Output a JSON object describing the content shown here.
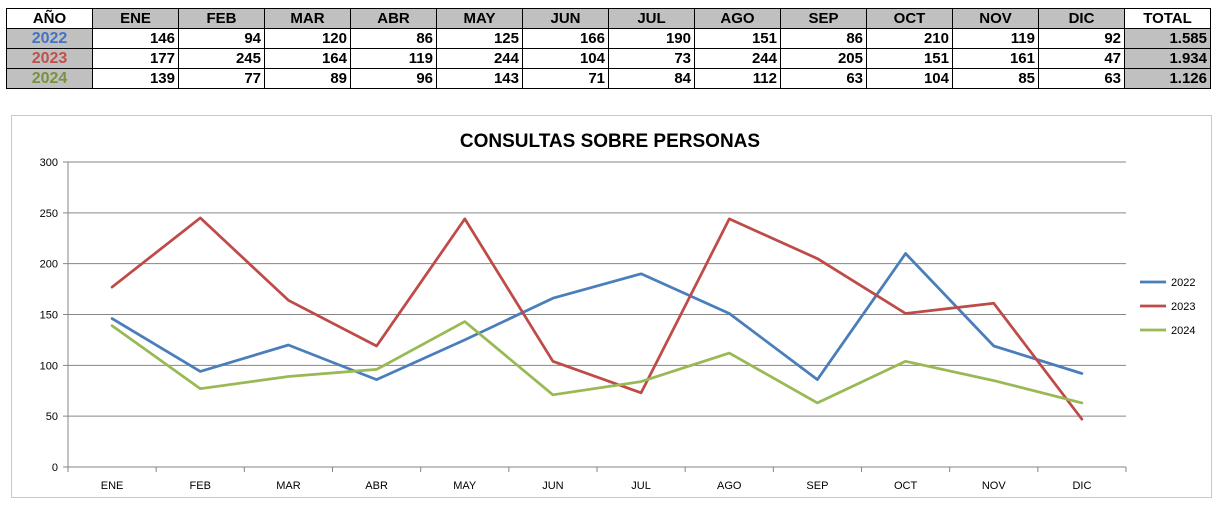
{
  "table": {
    "header_year": "AÑO",
    "header_total": "TOTAL",
    "months": [
      "ENE",
      "FEB",
      "MAR",
      "ABR",
      "MAY",
      "JUN",
      "JUL",
      "AGO",
      "SEP",
      "OCT",
      "NOV",
      "DIC"
    ],
    "rows": [
      {
        "year": "2022",
        "color": "#4472C4",
        "values": [
          "146",
          "94",
          "120",
          "86",
          "125",
          "166",
          "190",
          "151",
          "86",
          "210",
          "119",
          "92"
        ],
        "total": "1.585"
      },
      {
        "year": "2023",
        "color": "#C0504D",
        "values": [
          "177",
          "245",
          "164",
          "119",
          "244",
          "104",
          "73",
          "244",
          "205",
          "151",
          "161",
          "47"
        ],
        "total": "1.934"
      },
      {
        "year": "2024",
        "color": "#9BBB59",
        "values": [
          "139",
          "77",
          "89",
          "96",
          "143",
          "71",
          "84",
          "112",
          "63",
          "104",
          "85",
          "63"
        ],
        "total": "1.126"
      }
    ]
  },
  "chart_data": {
    "type": "line",
    "title": "CONSULTAS SOBRE PERSONAS",
    "categories": [
      "ENE",
      "FEB",
      "MAR",
      "ABR",
      "MAY",
      "JUN",
      "JUL",
      "AGO",
      "SEP",
      "OCT",
      "NOV",
      "DIC"
    ],
    "series": [
      {
        "name": "2022",
        "color": "#4A7EBB",
        "values": [
          146,
          94,
          120,
          86,
          125,
          166,
          190,
          151,
          86,
          210,
          119,
          92
        ]
      },
      {
        "name": "2023",
        "color": "#BE4B48",
        "values": [
          177,
          245,
          164,
          119,
          244,
          104,
          73,
          244,
          205,
          151,
          161,
          47
        ]
      },
      {
        "name": "2024",
        "color": "#98B954",
        "values": [
          139,
          77,
          89,
          96,
          143,
          71,
          84,
          112,
          63,
          104,
          85,
          63
        ]
      }
    ],
    "ylim": [
      0,
      300
    ],
    "yticks": [
      "0",
      "50",
      "100",
      "150",
      "200",
      "250",
      "300"
    ],
    "grid": true,
    "legend_position": "right"
  }
}
